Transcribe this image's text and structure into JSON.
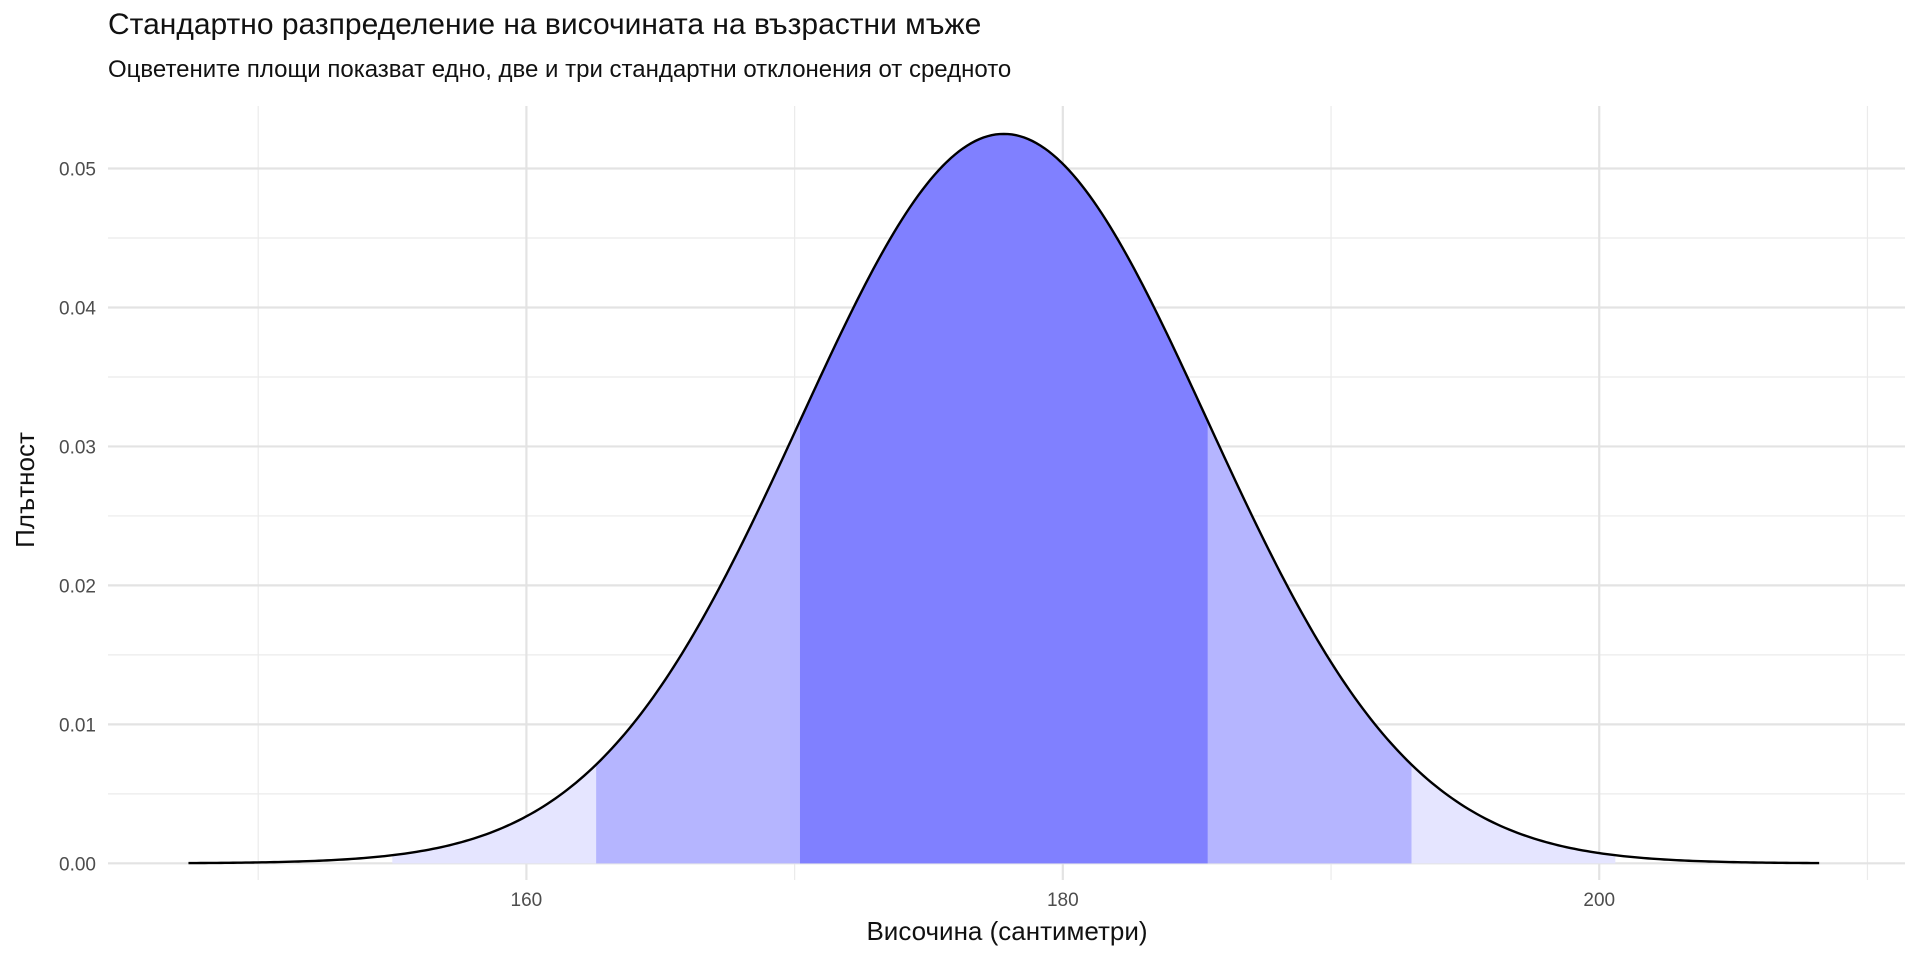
{
  "chart_data": {
    "type": "area",
    "title": "Стандартно разпределение на височината на възрастни мъже",
    "subtitle": "Оцветените площи показват едно, две и три стандартни отклонения от средното",
    "xlabel": "Височина (сантиметри)",
    "ylabel": "Плътност",
    "xlim": [
      144.4,
      211.4
    ],
    "ylim": [
      -0.0012,
      0.0545
    ],
    "x_ticks": [
      160,
      180,
      200
    ],
    "x_tick_labels": [
      "160",
      "180",
      "200"
    ],
    "y_ticks": [
      0,
      0.01,
      0.02,
      0.03,
      0.04,
      0.05
    ],
    "y_tick_labels": [
      "0.00",
      "0.01",
      "0.02",
      "0.03",
      "0.04",
      "0.05"
    ],
    "x_minor_ticks": [
      150,
      170,
      190,
      210
    ],
    "y_minor_ticks": [
      0.005,
      0.015,
      0.025,
      0.035,
      0.045
    ],
    "grid": true,
    "distribution": {
      "mean": 177.8,
      "sd": 7.6
    },
    "curve_range": [
      147.4,
      208.2
    ],
    "bands": [
      {
        "k": 3,
        "range": [
          155.0,
          200.6
        ],
        "color": "#e5e5ff"
      },
      {
        "k": 2,
        "range": [
          162.6,
          193.0
        ],
        "color": "#b5b5ff"
      },
      {
        "k": 1,
        "range": [
          170.2,
          185.4
        ],
        "color": "#8080ff"
      }
    ],
    "line_color": "#000000"
  }
}
